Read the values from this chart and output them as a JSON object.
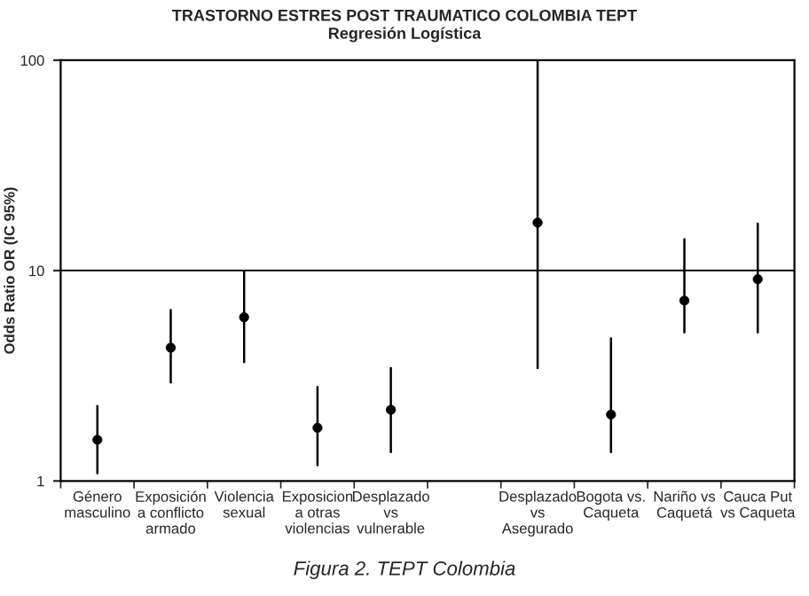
{
  "chart_data": {
    "type": "scatter",
    "title": "TRASTORNO ESTRES POST TRAUMATICO COLOMBIA TEPT",
    "subtitle": "Regresión Logística",
    "ylabel": "Odds Ratio OR (IC 95%)",
    "categories": [
      "Género\nmasculino",
      "Exposición\na conflicto\narmado",
      "Violencia\nsexual",
      "Exposicion\na otras\nviolencias",
      "Desplazado\nvs\nvulnerable",
      null,
      "Desplazado\nvs\nAsegurado",
      "Bogota vs.\nCaqueta",
      "Nariño vs\nCaquetá",
      "Cauca Put\nvs Caqueta"
    ],
    "series": [
      {
        "color": "#000000",
        "values": [
          1.57,
          4.3,
          6.0,
          1.79,
          2.18,
          null,
          16.9,
          2.07,
          7.2,
          9.1
        ],
        "errors": [
          [
            1.09,
            2.27
          ],
          [
            2.94,
            6.5
          ],
          [
            3.67,
            9.9
          ],
          [
            1.19,
            2.8
          ],
          [
            1.37,
            3.44
          ],
          null,
          [
            3.44,
            100
          ],
          [
            1.37,
            4.76
          ],
          [
            5.08,
            14.1
          ],
          [
            5.08,
            16.7
          ]
        ]
      }
    ],
    "log": true,
    "ylim": [
      1,
      100
    ],
    "yticks": [
      1,
      10,
      100
    ],
    "ref_lines": [
      {
        "axis": "y",
        "value": 10,
        "color": "#000000"
      }
    ],
    "marker": "circle",
    "annotations": [
      "Figura 2. TEPT Colombia"
    ]
  }
}
